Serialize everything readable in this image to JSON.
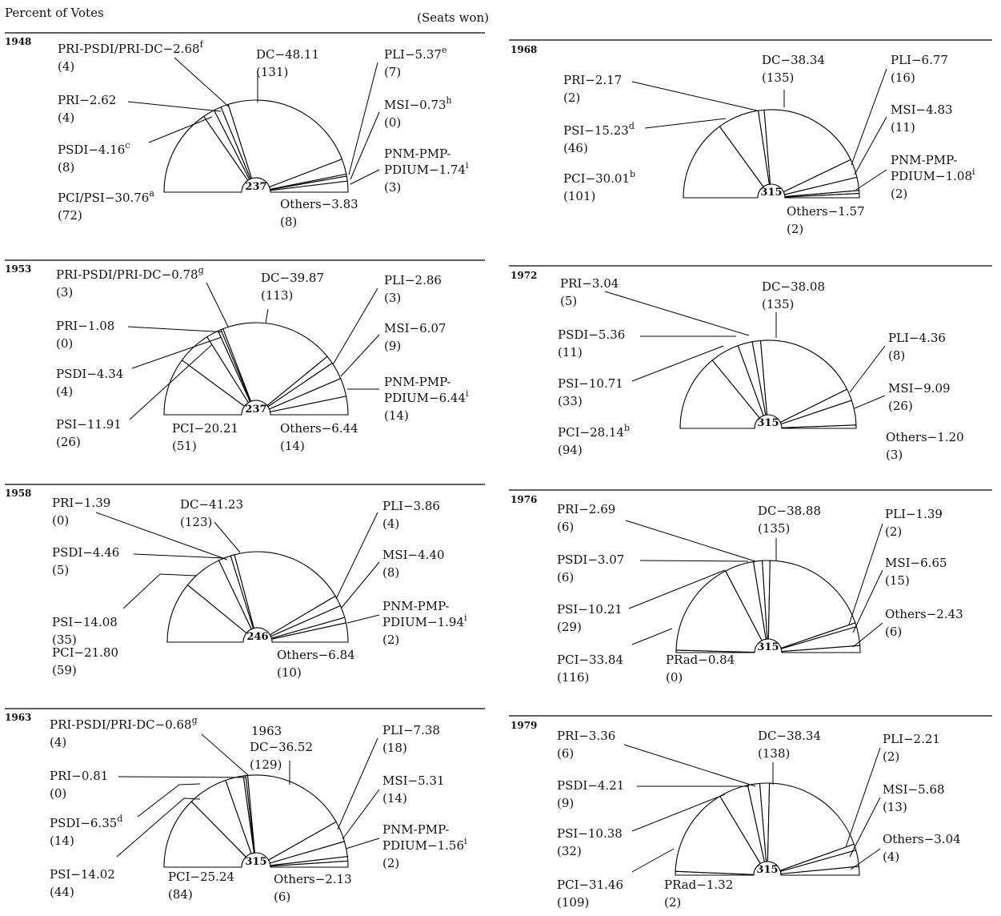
{
  "header": {
    "left": "Percent of Votes",
    "right": "(Seats won)"
  },
  "chart_data": [
    {
      "type": "pie",
      "year": "1948",
      "total": "237",
      "slices": [
        {
          "l1": "PCI/PSI−30.76",
          "sup": "a",
          "l2": "(72)",
          "value": 30.76
        },
        {
          "l1": "PSDI−4.16",
          "sup": "c",
          "l2": "(8)",
          "value": 4.16
        },
        {
          "l1": "PRI−2.62",
          "sup": "",
          "l2": "(4)",
          "value": 2.62
        },
        {
          "l1": "PRI-PSDI/PRI-DC−2.68",
          "sup": "f",
          "l2": "(4)",
          "value": 2.68
        },
        {
          "l1": "DC−48.11",
          "sup": "",
          "l2": "(131)",
          "value": 48.11
        },
        {
          "l1": "PLI−5.37",
          "sup": "e",
          "l2": "(7)",
          "value": 5.37
        },
        {
          "l1": "MSI−0.73",
          "sup": "h",
          "l2": "(0)",
          "value": 0.73
        },
        {
          "l1": "PNM-PMP-",
          "l1b": "PDIUM−1.74",
          "sup": "i",
          "l2": "(3)",
          "value": 1.74
        },
        {
          "l1": "Others−3.83",
          "sup": "",
          "l2": "(8)",
          "value": 3.83
        }
      ]
    },
    {
      "type": "pie",
      "year": "1953",
      "total": "237",
      "slices": [
        {
          "l1": "PCI−20.21",
          "sup": "",
          "l2": "(51)",
          "value": 20.21
        },
        {
          "l1": "PSI−11.91",
          "sup": "",
          "l2": "(26)",
          "value": 11.91
        },
        {
          "l1": "PSDI−4.34",
          "sup": "",
          "l2": "(4)",
          "value": 4.34
        },
        {
          "l1": "PRI−1.08",
          "sup": "",
          "l2": "(0)",
          "value": 1.08
        },
        {
          "l1": "PRI-PSDI/PRI-DC−0.78",
          "sup": "g",
          "l2": "(3)",
          "value": 0.78
        },
        {
          "l1": "DC−39.87",
          "sup": "",
          "l2": "(113)",
          "value": 39.87
        },
        {
          "l1": "PLI−2.86",
          "sup": "",
          "l2": "(3)",
          "value": 2.86
        },
        {
          "l1": "MSI−6.07",
          "sup": "",
          "l2": "(9)",
          "value": 6.07
        },
        {
          "l1": "PNM-PMP-",
          "l1b": "PDIUM−6.44",
          "sup": "i",
          "l2": "(14)",
          "value": 6.44
        },
        {
          "l1": "Others−6.44",
          "sup": "",
          "l2": "(14)",
          "value": 6.44
        }
      ]
    },
    {
      "type": "pie",
      "year": "1958",
      "total": "246",
      "slices": [
        {
          "l1": "PCI−21.80",
          "sup": "",
          "l2": "(59)",
          "value": 21.8
        },
        {
          "l1": "PSI−14.08",
          "sup": "",
          "l2": "(35)",
          "value": 14.08
        },
        {
          "l1": "PSDI−4.46",
          "sup": "",
          "l2": "(5)",
          "value": 4.46
        },
        {
          "l1": "PRI−1.39",
          "sup": "",
          "l2": "(0)",
          "value": 1.39
        },
        {
          "l1": "DC−41.23",
          "sup": "",
          "l2": "(123)",
          "value": 41.23
        },
        {
          "l1": "PLI−3.86",
          "sup": "",
          "l2": "(4)",
          "value": 3.86
        },
        {
          "l1": "MSI−4.40",
          "sup": "",
          "l2": "(8)",
          "value": 4.4
        },
        {
          "l1": "PNM-PMP-",
          "l1b": "PDIUM−1.94",
          "sup": "i",
          "l2": "(2)",
          "value": 1.94
        },
        {
          "l1": "Others−6.84",
          "sup": "",
          "l2": "(10)",
          "value": 6.84
        }
      ]
    },
    {
      "type": "pie",
      "year": "1963",
      "total": "315",
      "slices": [
        {
          "l1": "PCI−25.24",
          "sup": "",
          "l2": "(84)",
          "value": 25.24
        },
        {
          "l1": "PSI−14.02",
          "sup": "",
          "l2": "(44)",
          "value": 14.02
        },
        {
          "l1": "PSDI−6.35",
          "sup": "d",
          "l2": "(14)",
          "value": 6.35
        },
        {
          "l1": "PRI−0.81",
          "sup": "",
          "l2": "(0)",
          "value": 0.81
        },
        {
          "l1": "PRI-PSDI/PRI-DC−0.68",
          "sup": "g",
          "l2": "(4)",
          "value": 0.68
        },
        {
          "l1": "DC−36.52",
          "sup": "",
          "l2": "(129)",
          "l0": "1963",
          "value": 36.52
        },
        {
          "l1": "PLI−7.38",
          "sup": "",
          "l2": "(18)",
          "value": 7.38
        },
        {
          "l1": "MSI−5.31",
          "sup": "",
          "l2": "(14)",
          "value": 5.31
        },
        {
          "l1": "PNM-PMP-",
          "l1b": "PDIUM−1.56",
          "sup": "i",
          "l2": "(2)",
          "value": 1.56
        },
        {
          "l1": "Others−2.13",
          "sup": "",
          "l2": "(6)",
          "value": 2.13
        }
      ]
    },
    {
      "type": "pie",
      "year": "1968",
      "total": "315",
      "slices": [
        {
          "l1": "PCI−30.01",
          "sup": "b",
          "l2": "(101)",
          "value": 30.01
        },
        {
          "l1": "PSI−15.23",
          "sup": "d",
          "l2": "(46)",
          "value": 15.23
        },
        {
          "l1": "PRI−2.17",
          "sup": "",
          "l2": "(2)",
          "value": 2.17
        },
        {
          "l1": "DC−38.34",
          "sup": "",
          "l2": "(135)",
          "value": 38.34
        },
        {
          "l1": "PLI−6.77",
          "sup": "",
          "l2": "(16)",
          "value": 6.77
        },
        {
          "l1": "MSI−4.83",
          "sup": "",
          "l2": "(11)",
          "value": 4.83
        },
        {
          "l1": "PNM-PMP-",
          "l1b": "PDIUM−1.08",
          "sup": "i",
          "l2": "(2)",
          "value": 1.08
        },
        {
          "l1": "Others−1.57",
          "sup": "",
          "l2": "(2)",
          "value": 1.57
        }
      ]
    },
    {
      "type": "pie",
      "year": "1972",
      "total": "315",
      "slices": [
        {
          "l1": "PCI−28.14",
          "sup": "b",
          "l2": "(94)",
          "value": 28.14
        },
        {
          "l1": "PSI−10.71",
          "sup": "",
          "l2": "(33)",
          "value": 10.71
        },
        {
          "l1": "PSDI−5.36",
          "sup": "",
          "l2": "(11)",
          "value": 5.36
        },
        {
          "l1": "PRI−3.04",
          "sup": "",
          "l2": "(5)",
          "value": 3.04
        },
        {
          "l1": "DC−38.08",
          "sup": "",
          "l2": "(135)",
          "value": 38.08
        },
        {
          "l1": "PLI−4.36",
          "sup": "",
          "l2": "(8)",
          "value": 4.36
        },
        {
          "l1": "MSI−9.09",
          "sup": "",
          "l2": "(26)",
          "value": 9.09
        },
        {
          "l1": "Others−1.20",
          "sup": "",
          "l2": "(3)",
          "value": 1.2
        }
      ]
    },
    {
      "type": "pie",
      "year": "1976",
      "total": "315",
      "slices": [
        {
          "l1": "PRad−0.84",
          "sup": "",
          "l2": "(0)",
          "value": 0.84
        },
        {
          "l1": "PCI−33.84",
          "sup": "",
          "l2": "(116)",
          "value": 33.84
        },
        {
          "l1": "PSI−10.21",
          "sup": "",
          "l2": "(29)",
          "value": 10.21
        },
        {
          "l1": "PSDI−3.07",
          "sup": "",
          "l2": "(6)",
          "value": 3.07
        },
        {
          "l1": "PRI−2.69",
          "sup": "",
          "l2": "(6)",
          "value": 2.69
        },
        {
          "l1": "DC−38.88",
          "sup": "",
          "l2": "(135)",
          "value": 38.88
        },
        {
          "l1": "PLI−1.39",
          "sup": "",
          "l2": "(2)",
          "value": 1.39
        },
        {
          "l1": "MSI−6.65",
          "sup": "",
          "l2": "(15)",
          "value": 6.65
        },
        {
          "l1": "Others−2.43",
          "sup": "",
          "l2": "(6)",
          "value": 2.43
        }
      ]
    },
    {
      "type": "pie",
      "year": "1979",
      "total": "315",
      "slices": [
        {
          "l1": "PRad−1.32",
          "sup": "",
          "l2": "(2)",
          "value": 1.32
        },
        {
          "l1": "PCI−31.46",
          "sup": "",
          "l2": "(109)",
          "value": 31.46
        },
        {
          "l1": "PSI−10.38",
          "sup": "",
          "l2": "(32)",
          "value": 10.38
        },
        {
          "l1": "PSDI−4.21",
          "sup": "",
          "l2": "(9)",
          "value": 4.21
        },
        {
          "l1": "PRI−3.36",
          "sup": "",
          "l2": "(6)",
          "value": 3.36
        },
        {
          "l1": "DC−38.34",
          "sup": "",
          "l2": "(138)",
          "value": 38.34
        },
        {
          "l1": "PLI−2.21",
          "sup": "",
          "l2": "(2)",
          "value": 2.21
        },
        {
          "l1": "MSI−5.68",
          "sup": "",
          "l2": "(13)",
          "value": 5.68
        },
        {
          "l1": "Others−3.04",
          "sup": "",
          "l2": "(4)",
          "value": 3.04
        }
      ]
    }
  ]
}
